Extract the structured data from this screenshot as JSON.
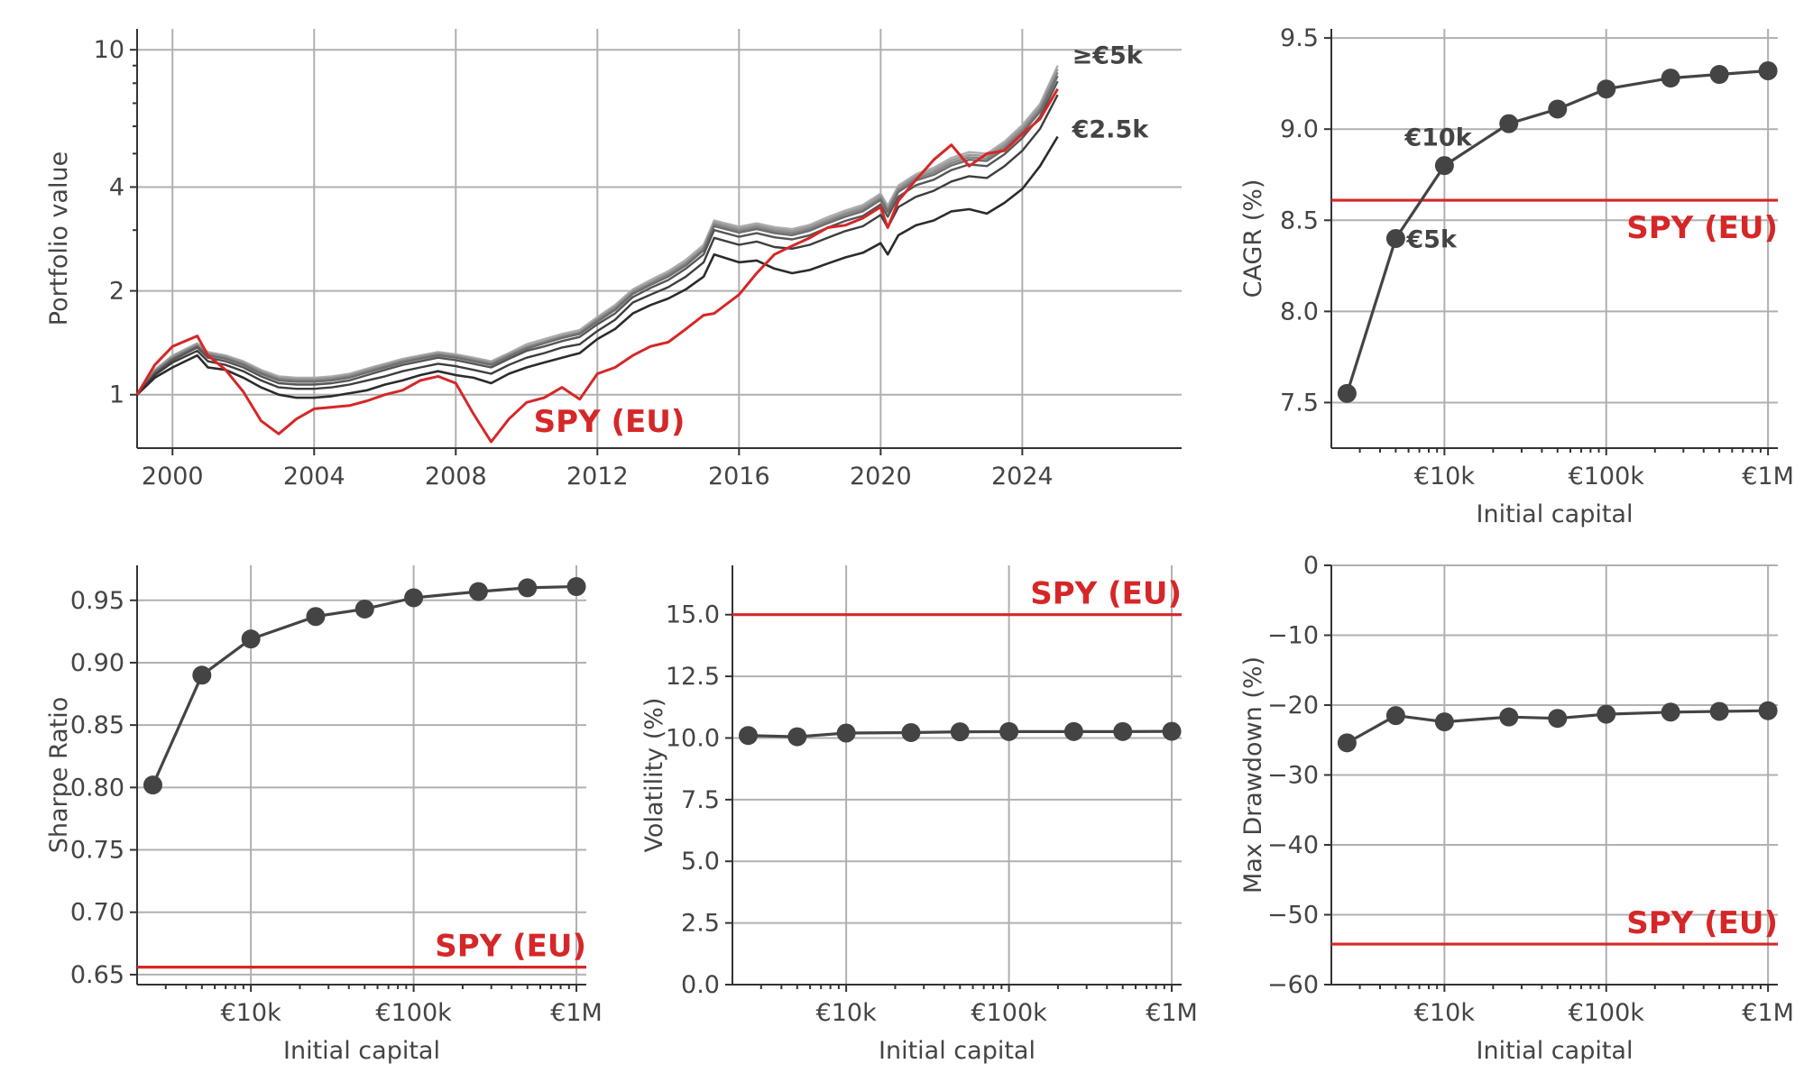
{
  "colors": {
    "benchmark": "#d62728",
    "strategy": "#444444",
    "grid": "#b0b0b0",
    "text": "#444444",
    "strategy_shades": [
      "#2b2b2b",
      "#3d3d3d",
      "#555555",
      "#6e6e6e",
      "#858585",
      "#9a9a9a",
      "#adadad"
    ]
  },
  "chart_data": [
    {
      "id": "portfolio",
      "type": "line",
      "ylabel": "Portfolio value",
      "xlabel": "",
      "yscale": "log",
      "xlim": [
        1999.0,
        2028.5
      ],
      "ylim": [
        0.7,
        11.5
      ],
      "xticks": [
        2000,
        2004,
        2008,
        2012,
        2016,
        2020,
        2024
      ],
      "xtick_labels": [
        "2000",
        "2004",
        "2008",
        "2012",
        "2016",
        "2020",
        "2024"
      ],
      "yticks": [
        1,
        2,
        4,
        10
      ],
      "ytick_labels": [
        "1",
        "2",
        "4",
        "10"
      ],
      "grid": true,
      "labels": {
        "benchmark": "SPY (EU)",
        "top": "≥€5k",
        "bottom": "€2.5k"
      },
      "x": [
        1999.0,
        1999.5,
        2000.0,
        2000.7,
        2001.0,
        2001.5,
        2002.0,
        2002.5,
        2003.0,
        2003.5,
        2004.0,
        2004.5,
        2005.0,
        2005.5,
        2006.0,
        2006.5,
        2007.0,
        2007.5,
        2008.0,
        2008.5,
        2009.0,
        2009.5,
        2010.0,
        2010.5,
        2011.0,
        2011.5,
        2012.0,
        2012.5,
        2013.0,
        2013.5,
        2014.0,
        2014.5,
        2015.0,
        2015.3,
        2016.0,
        2016.5,
        2017.0,
        2017.5,
        2018.0,
        2018.5,
        2019.0,
        2019.5,
        2020.0,
        2020.2,
        2020.5,
        2021.0,
        2021.5,
        2022.0,
        2022.5,
        2023.0,
        2023.5,
        2024.0,
        2024.5,
        2025.0
      ],
      "series": [
        {
          "name": "SPY (EU)",
          "role": "benchmark",
          "values": [
            1.0,
            1.22,
            1.38,
            1.48,
            1.3,
            1.18,
            1.02,
            0.84,
            0.77,
            0.85,
            0.91,
            0.92,
            0.93,
            0.96,
            1.0,
            1.03,
            1.1,
            1.13,
            1.08,
            0.88,
            0.73,
            0.85,
            0.95,
            0.98,
            1.05,
            0.97,
            1.15,
            1.2,
            1.3,
            1.38,
            1.42,
            1.55,
            1.7,
            1.72,
            1.95,
            2.25,
            2.55,
            2.7,
            2.85,
            3.05,
            3.1,
            3.25,
            3.5,
            3.05,
            3.65,
            4.2,
            4.8,
            5.3,
            4.6,
            5.0,
            5.1,
            5.7,
            6.3,
            7.7
          ]
        },
        {
          "name": "",
          "role": "strategy",
          "values": [
            1.0,
            1.12,
            1.2,
            1.3,
            1.2,
            1.18,
            1.12,
            1.05,
            1.0,
            0.98,
            0.98,
            0.99,
            1.01,
            1.03,
            1.07,
            1.1,
            1.14,
            1.17,
            1.14,
            1.12,
            1.08,
            1.15,
            1.2,
            1.24,
            1.28,
            1.32,
            1.45,
            1.55,
            1.72,
            1.82,
            1.9,
            2.02,
            2.2,
            2.55,
            2.42,
            2.45,
            2.32,
            2.25,
            2.3,
            2.4,
            2.5,
            2.58,
            2.75,
            2.55,
            2.9,
            3.1,
            3.2,
            3.4,
            3.45,
            3.35,
            3.6,
            3.95,
            4.6,
            5.6
          ]
        },
        {
          "name": "",
          "role": "strategy",
          "values": [
            1.0,
            1.14,
            1.24,
            1.34,
            1.25,
            1.22,
            1.17,
            1.1,
            1.05,
            1.04,
            1.04,
            1.05,
            1.07,
            1.1,
            1.13,
            1.17,
            1.2,
            1.23,
            1.21,
            1.18,
            1.15,
            1.22,
            1.28,
            1.32,
            1.37,
            1.4,
            1.53,
            1.65,
            1.85,
            1.95,
            2.05,
            2.2,
            2.42,
            2.85,
            2.72,
            2.78,
            2.68,
            2.65,
            2.72,
            2.85,
            2.98,
            3.08,
            3.32,
            3.05,
            3.5,
            3.75,
            3.9,
            4.15,
            4.3,
            4.25,
            4.6,
            5.1,
            5.9,
            7.4
          ]
        },
        {
          "name": "",
          "role": "strategy",
          "values": [
            1.0,
            1.15,
            1.26,
            1.37,
            1.28,
            1.25,
            1.2,
            1.13,
            1.08,
            1.07,
            1.07,
            1.08,
            1.1,
            1.14,
            1.18,
            1.22,
            1.25,
            1.28,
            1.26,
            1.23,
            1.2,
            1.27,
            1.34,
            1.38,
            1.43,
            1.47,
            1.6,
            1.72,
            1.92,
            2.04,
            2.15,
            2.32,
            2.55,
            3.0,
            2.87,
            2.94,
            2.86,
            2.82,
            2.9,
            3.05,
            3.19,
            3.3,
            3.56,
            3.28,
            3.75,
            4.05,
            4.2,
            4.48,
            4.65,
            4.6,
            4.98,
            5.55,
            6.4,
            8.1
          ]
        },
        {
          "name": "",
          "role": "strategy",
          "values": [
            1.0,
            1.16,
            1.27,
            1.38,
            1.3,
            1.27,
            1.22,
            1.15,
            1.1,
            1.09,
            1.09,
            1.1,
            1.12,
            1.16,
            1.2,
            1.24,
            1.27,
            1.3,
            1.28,
            1.25,
            1.22,
            1.29,
            1.36,
            1.41,
            1.46,
            1.5,
            1.63,
            1.76,
            1.96,
            2.08,
            2.2,
            2.37,
            2.62,
            3.08,
            2.95,
            3.02,
            2.94,
            2.9,
            2.99,
            3.14,
            3.28,
            3.4,
            3.67,
            3.38,
            3.87,
            4.18,
            4.34,
            4.62,
            4.8,
            4.76,
            5.15,
            5.75,
            6.6,
            8.4
          ]
        },
        {
          "name": "",
          "role": "strategy",
          "values": [
            1.0,
            1.17,
            1.28,
            1.39,
            1.31,
            1.28,
            1.23,
            1.16,
            1.11,
            1.1,
            1.1,
            1.11,
            1.13,
            1.17,
            1.21,
            1.25,
            1.28,
            1.31,
            1.29,
            1.26,
            1.23,
            1.3,
            1.37,
            1.42,
            1.47,
            1.51,
            1.65,
            1.78,
            1.98,
            2.1,
            2.23,
            2.4,
            2.65,
            3.12,
            2.99,
            3.06,
            2.98,
            2.94,
            3.03,
            3.18,
            3.33,
            3.45,
            3.72,
            3.43,
            3.93,
            4.24,
            4.41,
            4.7,
            4.88,
            4.84,
            5.24,
            5.85,
            6.72,
            8.6
          ]
        },
        {
          "name": "",
          "role": "strategy",
          "values": [
            1.0,
            1.17,
            1.29,
            1.4,
            1.32,
            1.29,
            1.24,
            1.17,
            1.12,
            1.11,
            1.11,
            1.12,
            1.14,
            1.18,
            1.22,
            1.26,
            1.29,
            1.32,
            1.3,
            1.27,
            1.24,
            1.31,
            1.38,
            1.43,
            1.48,
            1.52,
            1.66,
            1.8,
            2.0,
            2.12,
            2.25,
            2.42,
            2.68,
            3.16,
            3.03,
            3.1,
            3.02,
            2.98,
            3.07,
            3.22,
            3.37,
            3.5,
            3.78,
            3.48,
            3.98,
            4.3,
            4.48,
            4.78,
            4.96,
            4.92,
            5.33,
            5.95,
            6.84,
            8.8
          ]
        },
        {
          "name": "",
          "role": "strategy",
          "values": [
            1.0,
            1.18,
            1.3,
            1.41,
            1.33,
            1.3,
            1.25,
            1.18,
            1.13,
            1.12,
            1.12,
            1.13,
            1.15,
            1.19,
            1.23,
            1.27,
            1.3,
            1.33,
            1.31,
            1.28,
            1.25,
            1.32,
            1.4,
            1.45,
            1.5,
            1.54,
            1.68,
            1.82,
            2.02,
            2.15,
            2.28,
            2.46,
            2.72,
            3.2,
            3.07,
            3.14,
            3.06,
            3.02,
            3.11,
            3.27,
            3.42,
            3.55,
            3.83,
            3.53,
            4.04,
            4.36,
            4.55,
            4.86,
            5.05,
            5.0,
            5.42,
            6.05,
            6.96,
            9.0
          ]
        }
      ]
    },
    {
      "id": "cagr",
      "type": "line",
      "xlabel": "Initial capital",
      "ylabel": "CAGR (%)",
      "xscale": "log",
      "xlim": [
        2000,
        1150000
      ],
      "ylim": [
        7.25,
        9.55
      ],
      "xticks": [
        10000,
        100000,
        1000000
      ],
      "xtick_labels": [
        "€10k",
        "€100k",
        "€1M"
      ],
      "yticks": [
        7.5,
        8.0,
        8.5,
        9.0,
        9.5
      ],
      "ytick_labels": [
        "7.5",
        "8.0",
        "8.5",
        "9.0",
        "9.5"
      ],
      "grid": true,
      "x": [
        2500,
        5000,
        10000,
        25000,
        50000,
        100000,
        250000,
        500000,
        1000000
      ],
      "values": [
        7.55,
        8.4,
        8.8,
        9.03,
        9.11,
        9.22,
        9.28,
        9.3,
        9.32
      ],
      "benchmark": {
        "label": "SPY (EU)",
        "value": 8.61
      },
      "annotations": [
        "€10k",
        "€5k"
      ]
    },
    {
      "id": "sharpe",
      "type": "line",
      "xlabel": "Initial capital",
      "ylabel": "Sharpe Ratio",
      "xscale": "log",
      "xlim": [
        2000,
        1150000
      ],
      "ylim": [
        0.642,
        0.978
      ],
      "xticks": [
        10000,
        100000,
        1000000
      ],
      "xtick_labels": [
        "€10k",
        "€100k",
        "€1M"
      ],
      "yticks": [
        0.65,
        0.7,
        0.75,
        0.8,
        0.85,
        0.9,
        0.95
      ],
      "ytick_labels": [
        "0.65",
        "0.70",
        "0.75",
        "0.80",
        "0.85",
        "0.90",
        "0.95"
      ],
      "grid": true,
      "x": [
        2500,
        5000,
        10000,
        25000,
        50000,
        100000,
        250000,
        500000,
        1000000
      ],
      "values": [
        0.802,
        0.89,
        0.919,
        0.937,
        0.943,
        0.952,
        0.957,
        0.96,
        0.961
      ],
      "benchmark": {
        "label": "SPY (EU)",
        "value": 0.656
      }
    },
    {
      "id": "volatility",
      "type": "line",
      "xlabel": "Initial capital",
      "ylabel": "Volatility (%)",
      "xscale": "log",
      "xlim": [
        2000,
        1150000
      ],
      "ylim": [
        0.0,
        17.0
      ],
      "xticks": [
        10000,
        100000,
        1000000
      ],
      "xtick_labels": [
        "€10k",
        "€100k",
        "€1M"
      ],
      "yticks": [
        0.0,
        2.5,
        5.0,
        7.5,
        10.0,
        12.5,
        15.0
      ],
      "ytick_labels": [
        "0.0",
        "2.5",
        "5.0",
        "7.5",
        "10.0",
        "12.5",
        "15.0"
      ],
      "grid": true,
      "x": [
        2500,
        5000,
        10000,
        25000,
        50000,
        100000,
        250000,
        500000,
        1000000
      ],
      "values": [
        10.1,
        10.05,
        10.2,
        10.22,
        10.25,
        10.26,
        10.26,
        10.26,
        10.27
      ],
      "benchmark": {
        "label": "SPY (EU)",
        "value": 15.0
      }
    },
    {
      "id": "drawdown",
      "type": "line",
      "xlabel": "Initial capital",
      "ylabel": "Max Drawdown (%)",
      "xscale": "log",
      "xlim": [
        2000,
        1150000
      ],
      "ylim": [
        -60,
        0
      ],
      "xticks": [
        10000,
        100000,
        1000000
      ],
      "xtick_labels": [
        "€10k",
        "€100k",
        "€1M"
      ],
      "yticks": [
        0,
        -10,
        -20,
        -30,
        -40,
        -50,
        -60
      ],
      "ytick_labels": [
        "0",
        "−10",
        "−20",
        "−30",
        "−40",
        "−50",
        "−60"
      ],
      "grid": true,
      "x": [
        2500,
        5000,
        10000,
        25000,
        50000,
        100000,
        250000,
        500000,
        1000000
      ],
      "values": [
        -25.4,
        -21.5,
        -22.4,
        -21.7,
        -21.9,
        -21.3,
        -21.0,
        -20.9,
        -20.8
      ],
      "benchmark": {
        "label": "SPY (EU)",
        "value": -54.2
      }
    }
  ]
}
